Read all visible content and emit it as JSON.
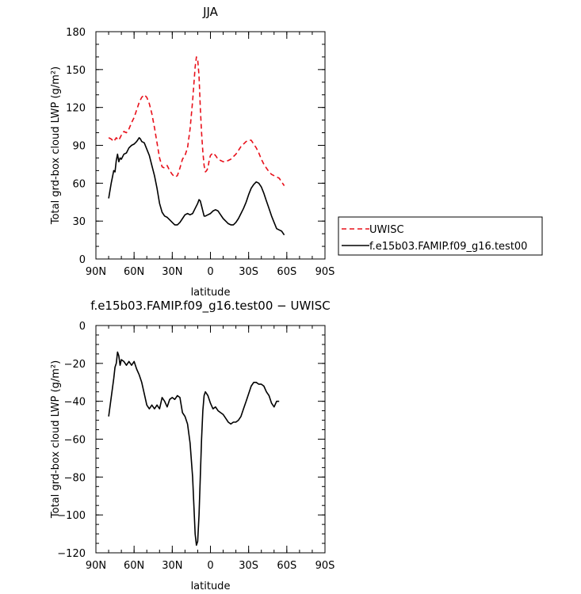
{
  "chart_data": [
    {
      "type": "line",
      "title": "JJA",
      "xlabel": "latitude",
      "ylabel": "Total grd-box cloud LWP (g/m²)",
      "xlim": [
        90,
        -90
      ],
      "ylim": [
        0,
        180
      ],
      "x_ticks": [
        90,
        60,
        30,
        0,
        -30,
        -60,
        -90
      ],
      "x_tick_labels": [
        "90N",
        "60N",
        "30N",
        "0",
        "30S",
        "60S",
        "90S"
      ],
      "y_ticks": [
        0,
        30,
        60,
        90,
        120,
        150,
        180
      ],
      "y_tick_labels": [
        "0",
        "30",
        "60",
        "90",
        "120",
        "150",
        "180"
      ],
      "legend_position": "right",
      "series": [
        {
          "name": "UWISC",
          "color": "#e8101a",
          "dash": "dashed",
          "points": [
            [
              80,
              96
            ],
            [
              78,
              95
            ],
            [
              76,
              93
            ],
            [
              74,
              96
            ],
            [
              72,
              94
            ],
            [
              70,
              98
            ],
            [
              68,
              101
            ],
            [
              66,
              100
            ],
            [
              64,
              103
            ],
            [
              62,
              108
            ],
            [
              60,
              112
            ],
            [
              58,
              118
            ],
            [
              56,
              124
            ],
            [
              54,
              128
            ],
            [
              52,
              130
            ],
            [
              50,
              128
            ],
            [
              48,
              123
            ],
            [
              46,
              115
            ],
            [
              44,
              104
            ],
            [
              42,
              92
            ],
            [
              40,
              80
            ],
            [
              38,
              73
            ],
            [
              36,
              72
            ],
            [
              34,
              74
            ],
            [
              32,
              70
            ],
            [
              30,
              67
            ],
            [
              28,
              65
            ],
            [
              26,
              66
            ],
            [
              24,
              72
            ],
            [
              22,
              79
            ],
            [
              20,
              82
            ],
            [
              18,
              88
            ],
            [
              16,
              103
            ],
            [
              14,
              125
            ],
            [
              12,
              152
            ],
            [
              11,
              160
            ],
            [
              10,
              158
            ],
            [
              9,
              145
            ],
            [
              8,
              120
            ],
            [
              7,
              100
            ],
            [
              6,
              85
            ],
            [
              5,
              74
            ],
            [
              4,
              69
            ],
            [
              3,
              70
            ],
            [
              2,
              72
            ],
            [
              1,
              78
            ],
            [
              0,
              82
            ],
            [
              -2,
              84
            ],
            [
              -4,
              82
            ],
            [
              -6,
              79
            ],
            [
              -8,
              78
            ],
            [
              -10,
              77
            ],
            [
              -12,
              77
            ],
            [
              -14,
              78
            ],
            [
              -16,
              79
            ],
            [
              -18,
              81
            ],
            [
              -20,
              83
            ],
            [
              -22,
              86
            ],
            [
              -24,
              89
            ],
            [
              -26,
              91
            ],
            [
              -28,
              93
            ],
            [
              -30,
              94
            ],
            [
              -32,
              94
            ],
            [
              -34,
              91
            ],
            [
              -36,
              88
            ],
            [
              -38,
              84
            ],
            [
              -40,
              79
            ],
            [
              -42,
              75
            ],
            [
              -44,
              72
            ],
            [
              -46,
              69
            ],
            [
              -48,
              67
            ],
            [
              -50,
              66
            ],
            [
              -52,
              65
            ],
            [
              -54,
              64
            ],
            [
              -56,
              61
            ],
            [
              -58,
              58
            ]
          ]
        },
        {
          "name": "f.e15b03.FAMIP.f09_g16.test00",
          "color": "#000000",
          "dash": "solid",
          "points": [
            [
              80,
              48
            ],
            [
              78,
              60
            ],
            [
              76,
              70
            ],
            [
              75,
              69
            ],
            [
              74,
              78
            ],
            [
              73,
              83
            ],
            [
              72,
              77
            ],
            [
              71,
              80
            ],
            [
              70,
              79
            ],
            [
              68,
              83
            ],
            [
              66,
              84
            ],
            [
              64,
              88
            ],
            [
              62,
              90
            ],
            [
              60,
              91
            ],
            [
              58,
              93
            ],
            [
              56,
              96
            ],
            [
              55,
              95
            ],
            [
              54,
              93
            ],
            [
              52,
              92
            ],
            [
              50,
              87
            ],
            [
              48,
              82
            ],
            [
              46,
              74
            ],
            [
              44,
              66
            ],
            [
              42,
              56
            ],
            [
              40,
              44
            ],
            [
              38,
              37
            ],
            [
              36,
              34
            ],
            [
              34,
              33
            ],
            [
              32,
              31
            ],
            [
              30,
              29
            ],
            [
              28,
              27
            ],
            [
              26,
              27
            ],
            [
              24,
              29
            ],
            [
              22,
              32
            ],
            [
              20,
              35
            ],
            [
              18,
              36
            ],
            [
              16,
              35
            ],
            [
              14,
              36
            ],
            [
              12,
              40
            ],
            [
              10,
              44
            ],
            [
              9,
              47
            ],
            [
              8,
              46
            ],
            [
              7,
              42
            ],
            [
              6,
              38
            ],
            [
              5,
              34
            ],
            [
              4,
              34
            ],
            [
              2,
              35
            ],
            [
              0,
              36
            ],
            [
              -2,
              38
            ],
            [
              -4,
              39
            ],
            [
              -6,
              38
            ],
            [
              -8,
              35
            ],
            [
              -10,
              32
            ],
            [
              -12,
              30
            ],
            [
              -14,
              28
            ],
            [
              -16,
              27
            ],
            [
              -18,
              27
            ],
            [
              -20,
              29
            ],
            [
              -22,
              32
            ],
            [
              -24,
              36
            ],
            [
              -26,
              40
            ],
            [
              -28,
              45
            ],
            [
              -30,
              51
            ],
            [
              -32,
              56
            ],
            [
              -34,
              59
            ],
            [
              -36,
              61
            ],
            [
              -38,
              60
            ],
            [
              -40,
              57
            ],
            [
              -42,
              52
            ],
            [
              -44,
              46
            ],
            [
              -46,
              40
            ],
            [
              -48,
              34
            ],
            [
              -50,
              29
            ],
            [
              -52,
              24
            ],
            [
              -54,
              23
            ],
            [
              -56,
              22
            ],
            [
              -58,
              19
            ]
          ]
        }
      ]
    },
    {
      "type": "line",
      "title": "f.e15b03.FAMIP.f09_g16.test00 − UWISC",
      "xlabel": "latitude",
      "ylabel": "Total grd-box cloud LWP (g/m²)",
      "xlim": [
        90,
        -90
      ],
      "ylim": [
        -120,
        0
      ],
      "x_ticks": [
        90,
        60,
        30,
        0,
        -30,
        -60,
        -90
      ],
      "x_tick_labels": [
        "90N",
        "60N",
        "30N",
        "0",
        "30S",
        "60S",
        "90S"
      ],
      "y_ticks": [
        -120,
        -100,
        -80,
        -60,
        -40,
        -20,
        0
      ],
      "y_tick_labels": [
        "−120",
        "−100",
        "−80",
        "−60",
        "−40",
        "−20",
        "0"
      ],
      "series": [
        {
          "color": "#000000",
          "dash": "solid",
          "points": [
            [
              80,
              -48
            ],
            [
              78,
              -38
            ],
            [
              76,
              -28
            ],
            [
              75,
              -22
            ],
            [
              74,
              -20
            ],
            [
              73,
              -14
            ],
            [
              72,
              -16
            ],
            [
              71,
              -21
            ],
            [
              70,
              -18
            ],
            [
              68,
              -19
            ],
            [
              66,
              -21
            ],
            [
              64,
              -19
            ],
            [
              62,
              -21
            ],
            [
              60,
              -19
            ],
            [
              58,
              -23
            ],
            [
              56,
              -26
            ],
            [
              54,
              -30
            ],
            [
              52,
              -36
            ],
            [
              50,
              -42
            ],
            [
              48,
              -44
            ],
            [
              46,
              -42
            ],
            [
              44,
              -44
            ],
            [
              42,
              -42
            ],
            [
              40,
              -44
            ],
            [
              38,
              -38
            ],
            [
              36,
              -40
            ],
            [
              34,
              -43
            ],
            [
              32,
              -39
            ],
            [
              30,
              -38
            ],
            [
              28,
              -39
            ],
            [
              26,
              -37
            ],
            [
              24,
              -38
            ],
            [
              22,
              -46
            ],
            [
              20,
              -48
            ],
            [
              18,
              -52
            ],
            [
              16,
              -62
            ],
            [
              14,
              -80
            ],
            [
              13,
              -95
            ],
            [
              12,
              -110
            ],
            [
              11,
              -116
            ],
            [
              10,
              -114
            ],
            [
              9,
              -100
            ],
            [
              8,
              -80
            ],
            [
              7,
              -60
            ],
            [
              6,
              -45
            ],
            [
              5,
              -37
            ],
            [
              4,
              -35
            ],
            [
              2,
              -37
            ],
            [
              0,
              -41
            ],
            [
              -2,
              -44
            ],
            [
              -4,
              -43
            ],
            [
              -6,
              -45
            ],
            [
              -8,
              -46
            ],
            [
              -10,
              -47
            ],
            [
              -12,
              -49
            ],
            [
              -14,
              -51
            ],
            [
              -16,
              -52
            ],
            [
              -18,
              -51
            ],
            [
              -20,
              -51
            ],
            [
              -22,
              -50
            ],
            [
              -24,
              -48
            ],
            [
              -26,
              -44
            ],
            [
              -28,
              -40
            ],
            [
              -30,
              -36
            ],
            [
              -32,
              -32
            ],
            [
              -34,
              -30
            ],
            [
              -36,
              -30
            ],
            [
              -38,
              -31
            ],
            [
              -40,
              -31
            ],
            [
              -42,
              -32
            ],
            [
              -44,
              -35
            ],
            [
              -46,
              -37
            ],
            [
              -48,
              -41
            ],
            [
              -50,
              -43
            ],
            [
              -52,
              -40
            ],
            [
              -54,
              -40
            ]
          ]
        }
      ]
    }
  ]
}
